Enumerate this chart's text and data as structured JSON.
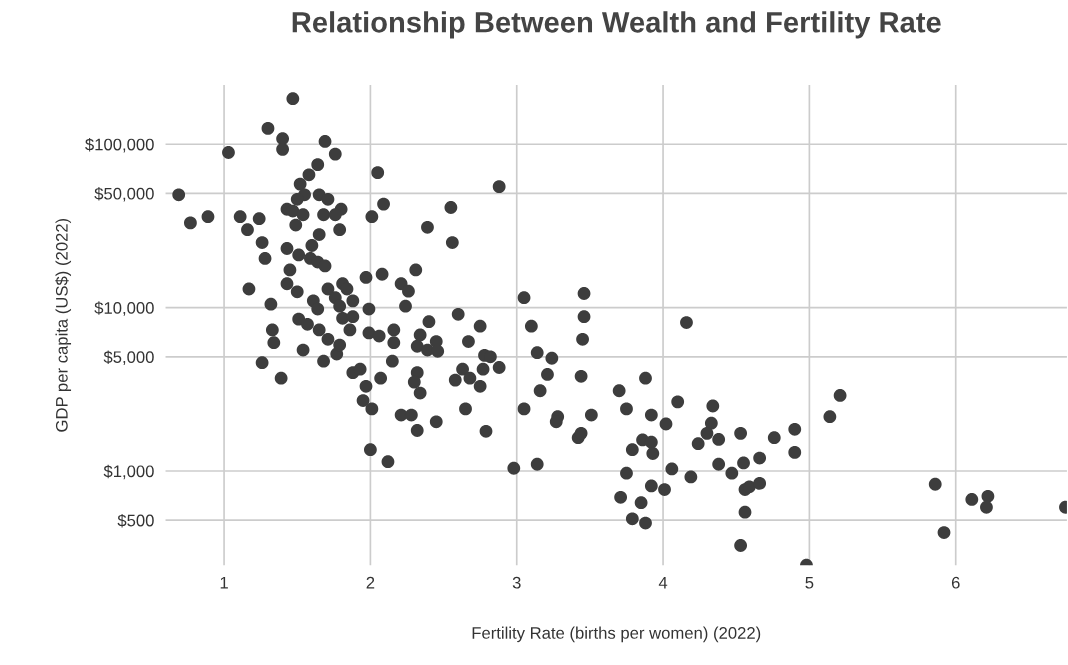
{
  "chart_data": {
    "type": "scatter",
    "title": "Relationship Between Wealth and Fertility Rate",
    "xlabel": "Fertility Rate (births per women) (2022)",
    "ylabel": "GDP per capita (US$) (2022)",
    "log": "y",
    "grid": true,
    "marker": "circle",
    "xlim": [
      0.6,
      6.76
    ],
    "xticks": [
      1,
      2,
      3,
      4,
      5,
      6
    ],
    "ylim": [
      265,
      230000
    ],
    "yticks": [
      {
        "value": 500,
        "label": "$500"
      },
      {
        "value": 1000,
        "label": "$1,000"
      },
      {
        "value": 5000,
        "label": "$5,000"
      },
      {
        "value": 10000,
        "label": "$10,000"
      },
      {
        "value": 50000,
        "label": "$50,000"
      },
      {
        "value": 100000,
        "label": "$100,000"
      }
    ],
    "series": [
      {
        "color": "#3d3d3d",
        "x": [
          0.69,
          0.77,
          0.89,
          1.03,
          1.11,
          1.16,
          1.17,
          1.24,
          1.26,
          1.28,
          1.26,
          1.3,
          1.4,
          1.4,
          1.47,
          1.49,
          1.32,
          1.33,
          1.34,
          1.39,
          1.45,
          1.43,
          1.5,
          1.51,
          1.54,
          1.52,
          1.55,
          1.58,
          1.64,
          1.69,
          1.76,
          1.6,
          1.65,
          1.43,
          1.47,
          1.5,
          1.54,
          1.65,
          1.71,
          1.68,
          1.59,
          1.64,
          1.69,
          1.51,
          1.43,
          1.71,
          1.61,
          1.64,
          1.57,
          1.65,
          1.71,
          1.68,
          1.77,
          1.79,
          1.76,
          1.79,
          1.81,
          1.84,
          1.88,
          1.81,
          1.79,
          1.8,
          1.76,
          1.88,
          1.86,
          2.05,
          2.88,
          2.09,
          2.01,
          2.55,
          2.39,
          2.56,
          2.31,
          1.97,
          2.08,
          2.21,
          2.26,
          2.24,
          1.99,
          3.05,
          2.6,
          2.4,
          2.75,
          3.1,
          1.99,
          2.06,
          2.16,
          2.16,
          2.34,
          2.32,
          2.39,
          2.45,
          2.46,
          2.67,
          2.15,
          2.78,
          2.82,
          3.14,
          3.24,
          3.21,
          1.88,
          1.93,
          1.97,
          2.07,
          2.32,
          2.3,
          2.34,
          2.63,
          2.58,
          2.68,
          2.75,
          2.77,
          2.88,
          1.95,
          2.01,
          2.21,
          2.28,
          2.45,
          2.32,
          2.65,
          2.79,
          3.16,
          3.05,
          3.28,
          2.0,
          2.12,
          2.98,
          3.14,
          3.46,
          3.46,
          3.45,
          4.16,
          3.44,
          3.88,
          3.7,
          3.75,
          3.92,
          4.02,
          4.1,
          3.51,
          3.27,
          3.42,
          3.44,
          4.34,
          4.33,
          4.3,
          4.24,
          4.38,
          3.86,
          3.92,
          3.93,
          3.79,
          3.75,
          4.06,
          4.19,
          4.38,
          4.47,
          4.53,
          4.55,
          4.66,
          4.76,
          3.71,
          3.85,
          3.79,
          3.88,
          3.92,
          4.01,
          4.56,
          4.59,
          4.66,
          4.56,
          4.53,
          4.9,
          4.9,
          5.21,
          5.14,
          4.98,
          5.86,
          5.92,
          6.11,
          6.22,
          6.21,
          6.75
        ],
        "values": [
          49000,
          33000,
          36000,
          89000,
          36000,
          30000,
          13000,
          35000,
          25000,
          20000,
          4600,
          125000,
          108000,
          93000,
          190000,
          32000,
          10500,
          7300,
          6100,
          3700,
          17000,
          14000,
          12500,
          8500,
          5500,
          57000,
          49000,
          65000,
          75000,
          104000,
          87000,
          24000,
          28000,
          40000,
          39000,
          46000,
          37000,
          49000,
          46000,
          37000,
          20000,
          19000,
          18000,
          21000,
          23000,
          13000,
          11000,
          9800,
          7900,
          7300,
          6400,
          4700,
          5200,
          5900,
          11500,
          10200,
          14000,
          13000,
          11000,
          8600,
          30000,
          40000,
          37000,
          8800,
          7300,
          67000,
          55000,
          43000,
          36000,
          41000,
          31000,
          25000,
          17000,
          15300,
          16000,
          14000,
          12600,
          10200,
          9800,
          11500,
          9100,
          8200,
          7700,
          7700,
          7000,
          6700,
          7300,
          6100,
          6800,
          5800,
          5500,
          6200,
          5400,
          6200,
          4700,
          5100,
          5000,
          5300,
          4900,
          3900,
          4000,
          4200,
          3300,
          3700,
          4000,
          3500,
          3000,
          4200,
          3600,
          3700,
          3300,
          4200,
          4300,
          2700,
          2400,
          2200,
          2200,
          2000,
          1770,
          2400,
          1750,
          3100,
          2400,
          2150,
          1350,
          1140,
          1040,
          1100,
          12200,
          8800,
          6400,
          8100,
          3800,
          3700,
          3100,
          2400,
          2200,
          1940,
          2650,
          2200,
          2000,
          1600,
          1700,
          2500,
          1960,
          1700,
          1470,
          1560,
          1550,
          1500,
          1280,
          1350,
          970,
          1030,
          920,
          1100,
          970,
          1700,
          1120,
          1200,
          1600,
          690,
          640,
          510,
          480,
          810,
          770,
          770,
          800,
          840,
          560,
          350,
          1800,
          1300,
          2900,
          2150,
          265,
          830,
          420,
          670,
          700,
          600,
          600
        ]
      }
    ]
  }
}
